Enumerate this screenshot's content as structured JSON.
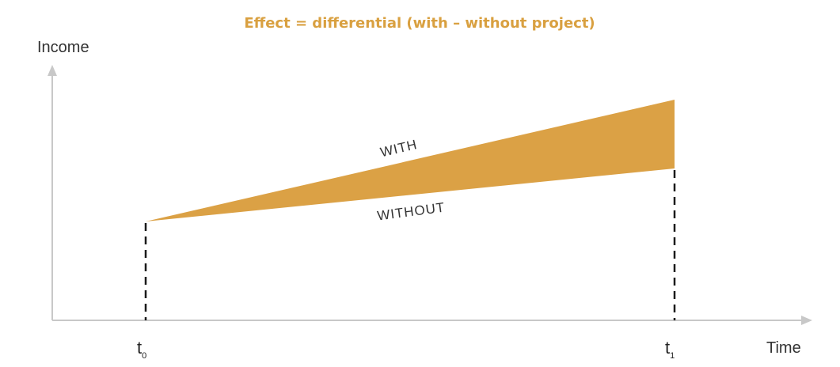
{
  "title": "Effect = differential (with – without project)",
  "y_axis_label": "Income",
  "x_axis_label": "Time",
  "series": {
    "with_label": "WITH",
    "without_label": "WITHOUT"
  },
  "ticks": {
    "start_base": "t",
    "start_sub": "0",
    "end_base": "t",
    "end_sub": "1"
  },
  "colors": {
    "title": "#d9a040",
    "area_fill": "#dba145",
    "axis": "#c8c8c8",
    "text": "#333333"
  }
}
